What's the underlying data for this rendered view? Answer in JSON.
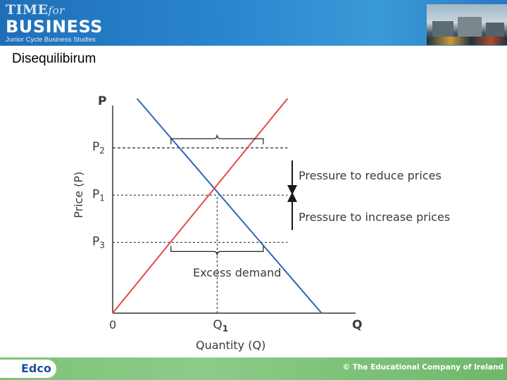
{
  "header": {
    "brand_top": "TIME",
    "brand_for": "for",
    "brand_main": "BUSINESS",
    "brand_sub": "Junior Cycle Business Studies"
  },
  "slide": {
    "title": "Disequilibirum"
  },
  "chart_data": {
    "type": "line",
    "x_axis_label": "Quantity (Q)",
    "y_axis_label": "Price (P)",
    "x_axis_end_label": "Q",
    "y_axis_end_label": "P",
    "origin_label": "0",
    "x_ticks": [
      {
        "label": "Q",
        "sub": "1",
        "value": 0.43
      }
    ],
    "y_ticks": [
      {
        "label": "P",
        "sub": "2",
        "value": 0.77
      },
      {
        "label": "P",
        "sub": "1",
        "value": 0.55
      },
      {
        "label": "P",
        "sub": "3",
        "value": 0.33
      }
    ],
    "xlim": [
      0,
      1
    ],
    "ylim": [
      0,
      1
    ],
    "series": [
      {
        "role": "demand",
        "color": "#2f64b5",
        "points": [
          [
            0.1,
            1.0
          ],
          [
            0.86,
            0.0
          ]
        ]
      },
      {
        "role": "supply",
        "color": "#e04a4a",
        "points": [
          [
            0.0,
            0.0
          ],
          [
            0.72,
            1.0
          ]
        ]
      }
    ],
    "price_lines": [
      {
        "y": 0.77,
        "x_end": 0.72
      },
      {
        "y": 0.55,
        "x_end": 0.72
      },
      {
        "y": 0.33,
        "x_end": 0.72
      }
    ],
    "quantity_line": {
      "x": 0.43,
      "y_end": 0.55
    },
    "annotations": [
      {
        "text": "Pressure to reduce prices",
        "arrow": "down"
      },
      {
        "text": "Pressure to increase prices",
        "arrow": "up"
      },
      {
        "text": "Excess demand",
        "brace": "bottom",
        "y": 0.33,
        "x_from": 0.24,
        "x_to": 0.62
      },
      {
        "brace": "top",
        "y": 0.77,
        "x_from": 0.24,
        "x_to": 0.62
      }
    ]
  },
  "footer": {
    "logo": "Edco",
    "copyright": "© The Educational Company of Ireland"
  }
}
